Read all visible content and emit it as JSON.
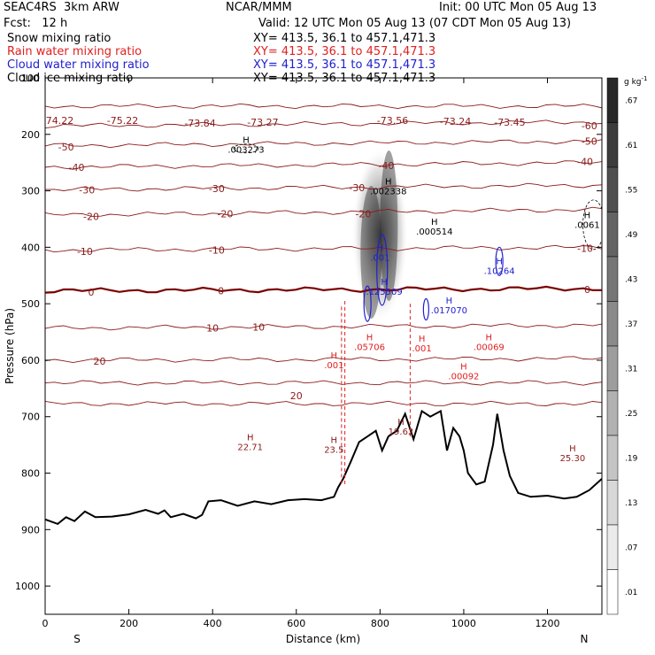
{
  "header": {
    "model": "SEAC4RS  3km ARW",
    "center": "NCAR/MMM",
    "init": "Init: 00 UTC Mon 05 Aug 13",
    "fcst": "Fcst:   12 h",
    "valid": "Valid: 12 UTC Mon 05 Aug 13 (07 CDT Mon 05 Aug 13)",
    "fields": [
      {
        "name": "Snow mixing ratio",
        "xy": "XY= 413.5, 36.1 to 457.1,471.3",
        "color": "#000000"
      },
      {
        "name": "Rain water mixing ratio",
        "xy": "XY= 413.5, 36.1 to 457.1,471.3",
        "color": "#e02020"
      },
      {
        "name": "Cloud water mixing ratio",
        "xy": "XY= 413.5, 36.1 to 457.1,471.3",
        "color": "#2020d0"
      },
      {
        "name": "Cloud ice mixing ratio",
        "xy": "XY= 413.5, 36.1 to 457.1,471.3",
        "color": "#000000"
      }
    ]
  },
  "chart_data": {
    "type": "contour",
    "xlabel": "Distance (km)",
    "ylabel": "Pressure (hPa)",
    "xlim": [
      0,
      1330
    ],
    "ylim": [
      100,
      1050
    ],
    "x_ticks": [
      0,
      200,
      400,
      600,
      800,
      1000,
      1200
    ],
    "y_ticks": [
      100,
      200,
      300,
      400,
      500,
      600,
      700,
      800,
      900,
      1000
    ],
    "x_end_labels": {
      "left": "S",
      "right": "N"
    },
    "colorbar": {
      "unit": "g kg",
      "unit_exp": "-1",
      "ticks": [
        ".67",
        ".61",
        ".55",
        ".49",
        ".43",
        ".37",
        ".31",
        ".25",
        ".19",
        ".13",
        ".07",
        ".01"
      ]
    },
    "colors": {
      "temperature": "#8b1a1a",
      "freezing": "#7a0000",
      "rain": "#e02020",
      "cloud_water": "#2020d0",
      "snow": "#505050",
      "terrain": "#000000"
    },
    "isotherms": [
      {
        "t": -70,
        "p_left": 150,
        "p_right": 150
      },
      {
        "t": -60,
        "p_left": 185,
        "p_right": 178
      },
      {
        "t": -50,
        "p_left": 220,
        "p_right": 212
      },
      {
        "t": -40,
        "p_left": 258,
        "p_right": 250
      },
      {
        "t": -30,
        "p_left": 298,
        "p_right": 290
      },
      {
        "t": -20,
        "p_left": 343,
        "p_right": 333
      },
      {
        "t": -10,
        "p_left": 405,
        "p_right": 400
      },
      {
        "t": 0,
        "p_left": 477,
        "p_right": 473
      },
      {
        "t": 10,
        "p_left": 543,
        "p_right": 538
      },
      {
        "t": 20,
        "p_left": 600,
        "p_right": 597
      },
      {
        "t": 30,
        "p_left": 640,
        "p_right": 640
      },
      {
        "t": 40,
        "p_left": 677,
        "p_right": 677
      }
    ],
    "isotherm_labels": [
      {
        "text": "-60",
        "x": 1300,
        "p": 185
      },
      {
        "text": "-50",
        "x": 50,
        "p": 222
      },
      {
        "text": "-50",
        "x": 1300,
        "p": 212
      },
      {
        "text": "-40",
        "x": 75,
        "p": 258
      },
      {
        "text": "-40",
        "x": 1290,
        "p": 248
      },
      {
        "text": "-40",
        "x": 815,
        "p": 255
      },
      {
        "text": "-30",
        "x": 100,
        "p": 298
      },
      {
        "text": "-30",
        "x": 410,
        "p": 296
      },
      {
        "text": "-30",
        "x": 745,
        "p": 294
      },
      {
        "text": "-20",
        "x": 110,
        "p": 345
      },
      {
        "text": "-20",
        "x": 430,
        "p": 341
      },
      {
        "text": "-20",
        "x": 760,
        "p": 341
      },
      {
        "text": "-10",
        "x": 95,
        "p": 407
      },
      {
        "text": "-10",
        "x": 410,
        "p": 405
      },
      {
        "text": "-10",
        "x": 1290,
        "p": 402
      },
      {
        "text": "0",
        "x": 110,
        "p": 479
      },
      {
        "text": "0",
        "x": 420,
        "p": 477
      },
      {
        "text": "0",
        "x": 1295,
        "p": 475
      },
      {
        "text": "10",
        "x": 400,
        "p": 543
      },
      {
        "text": "10",
        "x": 510,
        "p": 541
      },
      {
        "text": "20",
        "x": 130,
        "p": 602
      },
      {
        "text": "20",
        "x": 600,
        "p": 663
      }
    ],
    "tropopause_labels": [
      {
        "text": "74.22",
        "x": 35,
        "p": 175
      },
      {
        "text": "-75.22",
        "x": 185,
        "p": 175
      },
      {
        "text": "-73.84",
        "x": 370,
        "p": 180
      },
      {
        "text": "-73.27",
        "x": 520,
        "p": 178
      },
      {
        "text": "-73.56",
        "x": 830,
        "p": 175
      },
      {
        "text": "-73.24",
        "x": 980,
        "p": 177
      },
      {
        "text": "-73.45",
        "x": 1110,
        "p": 178
      }
    ],
    "maxima": [
      {
        "kind": "H",
        "value": ".003273",
        "x": 480,
        "p": 218,
        "color": "#000000"
      },
      {
        "kind": "H",
        "value": ".002338",
        "x": 820,
        "p": 292,
        "color": "#000000"
      },
      {
        "kind": "H",
        "value": ".000514",
        "x": 930,
        "p": 363,
        "color": "#000000"
      },
      {
        "kind": "H",
        "value": ".0061",
        "x": 1295,
        "p": 352,
        "color": "#000000"
      },
      {
        "kind": "H",
        "value": ".125509",
        "x": 810,
        "p": 470,
        "color": "#2020d0"
      },
      {
        "kind": "H",
        "value": ".10264",
        "x": 1085,
        "p": 433,
        "color": "#2020d0"
      },
      {
        "kind": "H",
        "value": ".017070",
        "x": 965,
        "p": 503,
        "color": "#2020d0"
      },
      {
        "kind": "H",
        "value": ".001",
        "x": 800,
        "p": 410,
        "color": "#2020d0"
      },
      {
        "kind": "H",
        "value": ".05706",
        "x": 775,
        "p": 568,
        "color": "#e02020"
      },
      {
        "kind": "H",
        "value": ".00069",
        "x": 1060,
        "p": 568,
        "color": "#e02020"
      },
      {
        "kind": "H",
        "value": ".00092",
        "x": 1000,
        "p": 620,
        "color": "#e02020"
      },
      {
        "kind": "H",
        "value": ".001",
        "x": 900,
        "p": 570,
        "color": "#e02020"
      },
      {
        "kind": "H",
        "value": ".001",
        "x": 690,
        "p": 600,
        "color": "#e02020"
      },
      {
        "kind": "H",
        "value": "22.71",
        "x": 490,
        "p": 745,
        "color": "#8b1a1a"
      },
      {
        "kind": "H",
        "value": "23.5",
        "x": 690,
        "p": 750,
        "color": "#8b1a1a"
      },
      {
        "kind": "H",
        "value": "25.30",
        "x": 1260,
        "p": 765,
        "color": "#8b1a1a"
      },
      {
        "kind": "H",
        "value": "19.62",
        "x": 850,
        "p": 718,
        "color": "#8b1a1a"
      }
    ],
    "terrain_p": [
      [
        0,
        882
      ],
      [
        30,
        890
      ],
      [
        50,
        878
      ],
      [
        70,
        885
      ],
      [
        95,
        868
      ],
      [
        120,
        878
      ],
      [
        160,
        877
      ],
      [
        200,
        873
      ],
      [
        240,
        865
      ],
      [
        270,
        872
      ],
      [
        285,
        866
      ],
      [
        300,
        878
      ],
      [
        330,
        872
      ],
      [
        360,
        880
      ],
      [
        375,
        874
      ],
      [
        390,
        850
      ],
      [
        420,
        848
      ],
      [
        460,
        858
      ],
      [
        500,
        850
      ],
      [
        540,
        855
      ],
      [
        580,
        848
      ],
      [
        620,
        846
      ],
      [
        660,
        848
      ],
      [
        690,
        842
      ],
      [
        700,
        825
      ],
      [
        712,
        810
      ],
      [
        730,
        780
      ],
      [
        750,
        745
      ],
      [
        770,
        735
      ],
      [
        790,
        725
      ],
      [
        805,
        760
      ],
      [
        820,
        735
      ],
      [
        840,
        725
      ],
      [
        860,
        695
      ],
      [
        880,
        740
      ],
      [
        900,
        690
      ],
      [
        920,
        700
      ],
      [
        945,
        690
      ],
      [
        960,
        760
      ],
      [
        975,
        720
      ],
      [
        990,
        735
      ],
      [
        1000,
        760
      ],
      [
        1010,
        800
      ],
      [
        1030,
        820
      ],
      [
        1050,
        815
      ],
      [
        1070,
        750
      ],
      [
        1080,
        695
      ],
      [
        1095,
        760
      ],
      [
        1110,
        805
      ],
      [
        1130,
        835
      ],
      [
        1160,
        842
      ],
      [
        1200,
        840
      ],
      [
        1240,
        845
      ],
      [
        1270,
        842
      ],
      [
        1300,
        830
      ],
      [
        1330,
        810
      ]
    ],
    "rain_columns": [
      {
        "x": 708,
        "p_top": 505,
        "p_bottom": 820
      },
      {
        "x": 716,
        "p_top": 495,
        "p_bottom": 820
      },
      {
        "x": 872,
        "p_top": 500,
        "p_bottom": 735
      }
    ],
    "snow_core": {
      "x": 800,
      "p_top": 285,
      "p_bottom": 470,
      "max": ".67"
    }
  }
}
